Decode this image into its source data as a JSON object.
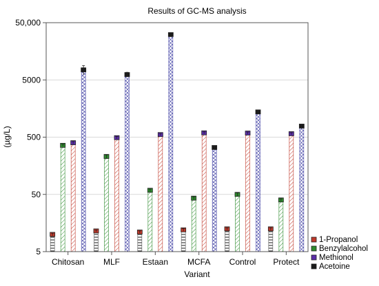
{
  "chart_data": {
    "type": "bar",
    "title": "Results of GC-MS analysis",
    "xlabel": "Variant",
    "ylabel": "(µg/L)",
    "y_scale": "log",
    "ylim": [
      5,
      50000
    ],
    "y_ticks": [
      5,
      50,
      500,
      5000,
      50000
    ],
    "y_tick_labels": [
      "5",
      "50",
      "500",
      "5000",
      "50,000"
    ],
    "grid": "horizontal",
    "legend_position": "bottom-right",
    "categories": [
      "Chitosan",
      "MLF",
      "Estaan",
      "MCFA",
      "Control",
      "Protect"
    ],
    "series": [
      {
        "name": "1-Propanol",
        "color": "#c0392b",
        "values": [
          10,
          11.5,
          11,
          12,
          12.5,
          12.5
        ],
        "errors": [
          0.5,
          0.5,
          0.5,
          0.6,
          0.6,
          0.6
        ]
      },
      {
        "name": "Benzylalcohol",
        "color": "#2e8b2e",
        "values": [
          360,
          230,
          59,
          43,
          50,
          40
        ],
        "errors": [
          15,
          15,
          3,
          2.5,
          3,
          2
        ]
      },
      {
        "name": "Methionol",
        "color": "#5b2da8",
        "values": [
          400,
          490,
          555,
          595,
          590,
          575
        ],
        "errors": [
          20,
          25,
          25,
          25,
          25,
          25
        ]
      },
      {
        "name": "Acetoine",
        "color": "#1a1a1a",
        "values": [
          7500,
          6200,
          31000,
          330,
          1380,
          780
        ],
        "errors": [
          1400,
          600,
          1800,
          20,
          70,
          45
        ]
      }
    ]
  }
}
